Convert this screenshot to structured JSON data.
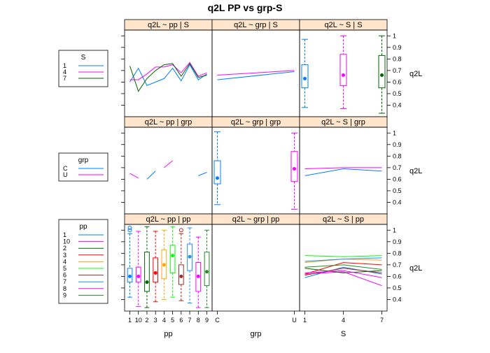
{
  "title": "q2L   PP vs grp-S",
  "y_axis_label": "q2L",
  "x_axis_labels": [
    "pp",
    "grp",
    "S"
  ],
  "colors": {
    "1": "#0080ff",
    "10": "#ff00ff",
    "2": "#006400",
    "3": "#ff0000",
    "4": "#ffa500",
    "5": "#00ff00",
    "6": "#a52a2a",
    "7": "#1e90ff",
    "8": "#ff00ff",
    "9": "#228b22",
    "C": "#0080ff",
    "U": "#ff00ff",
    "S1": "#0080ff",
    "S4": "#ff00ff",
    "S7": "#006400",
    "strip_bg": "#ffe5cc"
  },
  "legends": [
    {
      "title": "S",
      "entries": [
        {
          "label": "1",
          "color": "#0080ff"
        },
        {
          "label": "4",
          "color": "#ff00ff"
        },
        {
          "label": "7",
          "color": "#006400"
        }
      ]
    },
    {
      "title": "grp",
      "entries": [
        {
          "label": "C",
          "color": "#0080ff"
        },
        {
          "label": "U",
          "color": "#ff00ff"
        }
      ]
    },
    {
      "title": "pp",
      "entries": [
        {
          "label": "1",
          "color": "#0080ff"
        },
        {
          "label": "10",
          "color": "#ff00ff"
        },
        {
          "label": "2",
          "color": "#006400"
        },
        {
          "label": "3",
          "color": "#ff0000"
        },
        {
          "label": "4",
          "color": "#ffa500"
        },
        {
          "label": "5",
          "color": "#00ff00"
        },
        {
          "label": "6",
          "color": "#a52a2a"
        },
        {
          "label": "7",
          "color": "#1e90ff"
        },
        {
          "label": "8",
          "color": "#ff00ff"
        },
        {
          "label": "9",
          "color": "#228b22"
        }
      ]
    }
  ],
  "chart_data": [
    {
      "type": "line",
      "strip": "q2L ~ pp | S",
      "x": [
        "1",
        "10",
        "2",
        "3",
        "4",
        "5",
        "6",
        "7",
        "8",
        "9"
      ],
      "ylim": [
        0.3,
        1.05
      ],
      "series": [
        {
          "name": "1",
          "color": "#0080ff",
          "values": [
            0.6,
            0.72,
            0.57,
            0.6,
            0.63,
            0.72,
            0.61,
            0.75,
            0.62,
            0.67
          ]
        },
        {
          "name": "4",
          "color": "#ff00ff",
          "values": [
            0.62,
            0.62,
            0.67,
            0.73,
            0.73,
            0.75,
            0.68,
            0.77,
            0.65,
            0.68
          ]
        },
        {
          "name": "7",
          "color": "#006400",
          "values": [
            0.74,
            0.52,
            0.63,
            0.7,
            0.75,
            0.76,
            0.65,
            0.76,
            0.64,
            0.66
          ]
        }
      ]
    },
    {
      "type": "line",
      "strip": "q2L ~ grp | S",
      "x": [
        "C",
        "U"
      ],
      "ylim": [
        0.3,
        1.05
      ],
      "series": [
        {
          "name": "1",
          "color": "#0080ff",
          "values": [
            0.62,
            0.69
          ]
        },
        {
          "name": "4",
          "color": "#ff00ff",
          "values": [
            0.66,
            0.7
          ]
        }
      ]
    },
    {
      "type": "box",
      "strip": "q2L ~ S | S",
      "x": [
        "1",
        "4",
        "7"
      ],
      "ylim": [
        0.3,
        1.05
      ],
      "boxes": [
        {
          "category": "1",
          "color": "#0080ff",
          "min": 0.38,
          "q1": 0.55,
          "median": 0.63,
          "q3": 0.75,
          "max": 0.97
        },
        {
          "category": "4",
          "color": "#ff00ff",
          "min": 0.37,
          "q1": 0.57,
          "median": 0.66,
          "q3": 0.84,
          "max": 1.0
        },
        {
          "category": "7",
          "color": "#006400",
          "min": 0.33,
          "q1": 0.55,
          "median": 0.66,
          "q3": 0.83,
          "max": 1.0
        }
      ]
    },
    {
      "type": "line",
      "strip": "q2L ~ pp | grp",
      "x": [
        "1",
        "10",
        "2",
        "3",
        "4",
        "5",
        "6",
        "7",
        "8",
        "9"
      ],
      "ylim": [
        0.3,
        1.05
      ],
      "series": [
        {
          "name": "C",
          "color": "#0080ff",
          "segments": [
            [
              [
                "2",
                0.6
              ],
              [
                "3",
                0.67
              ]
            ],
            [
              [
                "8",
                0.63
              ],
              [
                "9",
                0.66
              ]
            ]
          ]
        },
        {
          "name": "U",
          "color": "#ff00ff",
          "segments": [
            [
              [
                "1",
                0.65
              ],
              [
                "10",
                0.61
              ]
            ],
            [
              [
                "4",
                0.7
              ],
              [
                "5",
                0.76
              ]
            ]
          ]
        }
      ]
    },
    {
      "type": "box",
      "strip": "q2L ~ grp | grp",
      "x": [
        "C",
        "U"
      ],
      "ylim": [
        0.3,
        1.05
      ],
      "boxes": [
        {
          "category": "C",
          "color": "#0080ff",
          "min": 0.38,
          "q1": 0.56,
          "median": 0.61,
          "q3": 0.76,
          "max": 1.01
        },
        {
          "category": "U",
          "color": "#ff00ff",
          "min": 0.34,
          "q1": 0.58,
          "median": 0.69,
          "q3": 0.84,
          "max": 1.0
        }
      ]
    },
    {
      "type": "line",
      "strip": "q2L ~ S | grp",
      "x": [
        "1",
        "4",
        "7"
      ],
      "ylim": [
        0.3,
        1.05
      ],
      "series": [
        {
          "name": "C",
          "color": "#0080ff",
          "values": [
            0.63,
            0.69,
            0.67
          ]
        },
        {
          "name": "U",
          "color": "#ff00ff",
          "values": [
            0.69,
            0.7,
            0.7
          ]
        }
      ]
    },
    {
      "type": "box",
      "strip": "q2L ~ pp | pp",
      "x": [
        "1",
        "10",
        "2",
        "3",
        "4",
        "5",
        "6",
        "7",
        "8",
        "9"
      ],
      "ylim": [
        0.3,
        1.05
      ],
      "boxes": [
        {
          "category": "1",
          "color": "#0080ff",
          "min": 0.42,
          "q1": 0.55,
          "median": 0.6,
          "q3": 0.67,
          "max": 0.97,
          "outliers": [
            1.0,
            1.02
          ]
        },
        {
          "category": "10",
          "color": "#ff00ff",
          "min": 0.34,
          "q1": 0.55,
          "median": 0.6,
          "q3": 0.68,
          "max": 0.99
        },
        {
          "category": "2",
          "color": "#006400",
          "min": 0.33,
          "q1": 0.47,
          "median": 0.55,
          "q3": 0.81,
          "max": 1.03
        },
        {
          "category": "3",
          "color": "#ff0000",
          "min": 0.38,
          "q1": 0.55,
          "median": 0.63,
          "q3": 0.76,
          "max": 0.99
        },
        {
          "category": "4",
          "color": "#ffa500",
          "min": 0.4,
          "q1": 0.58,
          "median": 0.7,
          "q3": 0.83,
          "max": 1.0
        },
        {
          "category": "5",
          "color": "#00ff00",
          "min": 0.42,
          "q1": 0.63,
          "median": 0.78,
          "q3": 0.87,
          "max": 1.03
        },
        {
          "category": "6",
          "color": "#a52a2a",
          "min": 0.39,
          "q1": 0.53,
          "median": 0.6,
          "q3": 0.7,
          "max": 0.97,
          "outliers": [
            1.0
          ]
        },
        {
          "category": "7",
          "color": "#1e90ff",
          "min": 0.37,
          "q1": 0.65,
          "median": 0.77,
          "q3": 0.88,
          "max": 1.02
        },
        {
          "category": "8",
          "color": "#ff00ff",
          "min": 0.33,
          "q1": 0.47,
          "median": 0.6,
          "q3": 0.72,
          "max": 0.94
        },
        {
          "category": "9",
          "color": "#228b22",
          "min": 0.33,
          "q1": 0.52,
          "median": 0.64,
          "q3": 0.81,
          "max": 1.0
        }
      ]
    },
    {
      "type": "empty",
      "strip": "q2L ~ grp | pp"
    },
    {
      "type": "line",
      "strip": "q2L ~ S | pp",
      "x": [
        "1",
        "4",
        "7"
      ],
      "ylim": [
        0.3,
        1.05
      ],
      "series": [
        {
          "name": "1",
          "color": "#0080ff",
          "values": [
            0.59,
            0.68,
            0.62
          ]
        },
        {
          "name": "10",
          "color": "#ff00ff",
          "values": [
            0.62,
            0.64,
            0.52
          ]
        },
        {
          "name": "2",
          "color": "#006400",
          "values": [
            0.67,
            0.63,
            0.65
          ]
        },
        {
          "name": "3",
          "color": "#ff0000",
          "values": [
            0.62,
            0.72,
            0.7
          ]
        },
        {
          "name": "4",
          "color": "#ffa500",
          "values": [
            0.72,
            0.75,
            0.74
          ]
        },
        {
          "name": "5",
          "color": "#00ff00",
          "values": [
            0.78,
            0.77,
            0.78
          ]
        },
        {
          "name": "6",
          "color": "#a52a2a",
          "values": [
            0.61,
            0.67,
            0.63
          ]
        },
        {
          "name": "7",
          "color": "#1e90ff",
          "values": [
            0.73,
            0.75,
            0.76
          ]
        },
        {
          "name": "8",
          "color": "#ff00ff",
          "values": [
            0.63,
            0.65,
            0.59
          ]
        },
        {
          "name": "9",
          "color": "#228b22",
          "values": [
            0.68,
            0.7,
            0.66
          ]
        }
      ]
    }
  ]
}
